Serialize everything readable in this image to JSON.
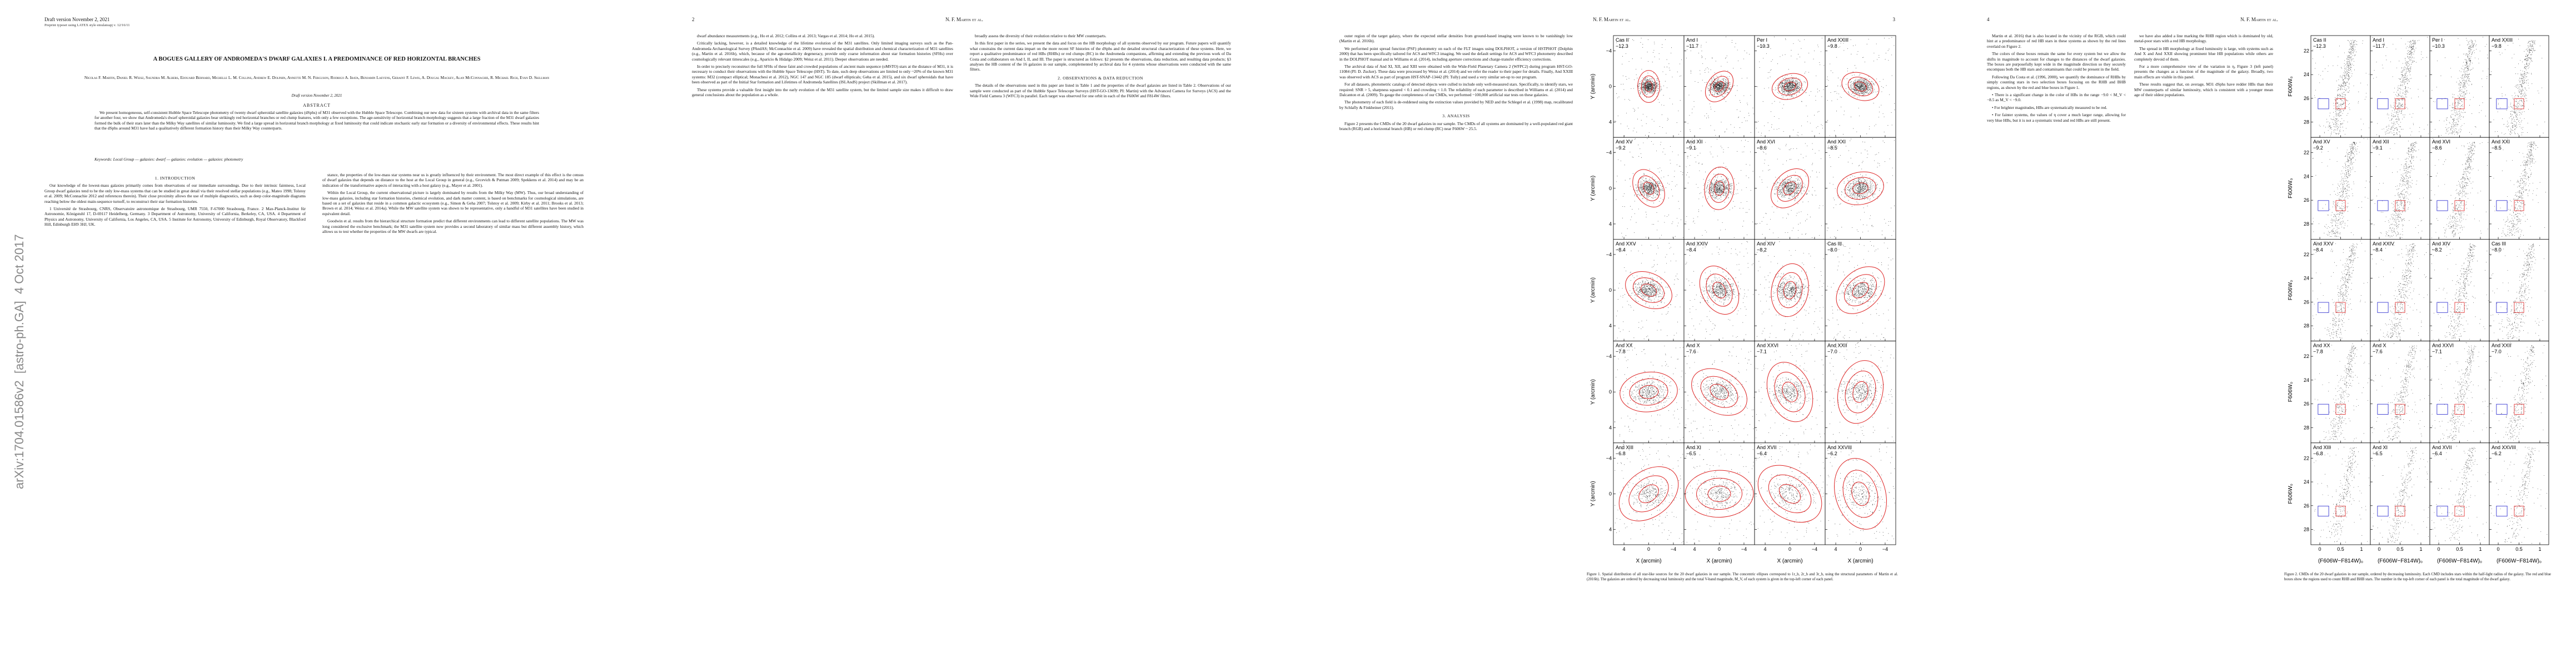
{
  "sidebar": "arXiv:1704.01586v2  [astro-ph.GA]  4 Oct 2017",
  "pages": [
    {
      "header": {
        "left": "Draft version November 2, 2021",
        "sub": "Preprint typeset using LATEX style emulateapj v. 12/16/11"
      },
      "title": "A BOGUES GALLERY OF ANDROMEDA'S DWARF GALAXIES I. A PREDOMINANCE OF RED HORIZONTAL BRANCHES",
      "authors": "Nicolas F. Martin, Daniel R. Weisz, Saundra M. Albers, Edouard Bernard, Michelle L. M. Collins, Andrew E. Dolphin, Annette M. N. Ferguson, Rodrigo A. Ibata, Benjamin Laevens, Geraint F. Lewis, A. Dougal Mackey, Alan McConnachie, R. Michael Rich, Evan D. Skillman",
      "draft_note": "Draft version November 2, 2021",
      "abstract_heading": "ABSTRACT",
      "abstract": "We present homogeneous, self-consistent Hubble Space Telescope photometry of twenty dwarf spheroidal satellite galaxies (dSphs) of M31 observed with the Hubble Space Telescope. Combining our new data for sixteen systems with archival data in the same filters for another four, we show that Andromeda's dwarf spheroidal galaxies bear strikingly red horizontal branches or red clump features, with only a few exceptions. The age-sensitivity of horizontal branch morphology suggests that a large fraction of the M31 dwarf galaxies formed the bulk of their stars later than the Milky Way satellites of similar luminosity. We find a large spread in horizontal branch morphology at fixed luminosity that could indicate stochastic early star formation or a diversity of environmental effects. These results hint that the dSphs around M31 have had a qualitatively different formation history than their Milky Way counterparts.",
      "keywords": "Keywords: Local Group — galaxies: dwarf — galaxies: evolution — galaxies: photometry",
      "columns": [
        [
          {
            "h": "1. INTRODUCTION"
          },
          {
            "p": "Our knowledge of the lowest-mass galaxies primarily comes from observations of our immediate surroundings. Due to their intrinsic faintness, Local Group dwarf galaxies tend to be the only low-mass systems that can be studied in great detail via their resolved stellar populations (e.g., Mateo 1998; Tolstoy et al. 2009; McConnachie 2012 and references therein). Their close proximity allows the use of multiple diagnostics, such as deep color-magnitude diagrams reaching below the oldest main-sequence turnoff, to reconstruct their star formation histories."
          },
          {
            "p": "1 Université de Strasbourg, CNRS, Observatoire astronomique de Strasbourg, UMR 7550, F-67000 Strasbourg, France. 2 Max-Planck-Institut für Astronomie, Königstuhl 17, D-69117 Heidelberg, Germany. 3 Department of Astronomy, University of California, Berkeley, CA, USA. 4 Department of Physics and Astronomy, University of California, Los Angeles, CA, USA. 5 Institute for Astronomy, University of Edinburgh, Royal Observatory, Blackford Hill, Edinburgh EH9 3HJ, UK."
          }
        ],
        [
          {
            "p": "stance, the properties of the low-mass star systems near us is greatly influenced by their environment. The most direct example of this effect is the census of dwarf galaxies that depends on distance to the host at the Local Group in general (e.g., Grcevich & Putman 2009; Spekkens et al. 2014) and may be an indication of the transformative aspects of interacting with a host galaxy (e.g., Mayer et al. 2001)."
          },
          {
            "p": "Within the Local Group, the current observational picture is largely dominated by results from the Milky Way (MW). Thus, our broad understanding of low-mass galaxies, including star formation histories, chemical evolution, and dark matter content, is based on benchmarks for cosmological simulations, are based on a set of galaxies that reside in a common galactic ecosystem (e.g., Simon & Geha 2007; Tolstoy et al. 2009; Kirby et al. 2011; Brooks et al. 2013; Brown et al. 2014; Weisz et al. 2014a). While the MW satellite system was shown to be representative, only a handful of M31 satellites have been studied in equivalent detail."
          },
          {
            "p": "Goodwin et al. results from the hierarchical structure formation predict that different environments can lead to different satellite populations. The MW was long considered the exclusive benchmark; the M31 satellite system now provides a second laboratory of similar mass but different assembly history, which allows us to test whether the properties of the MW dwarfs are typical."
          }
        ]
      ]
    },
    {
      "header": {
        "left": "2",
        "center": "N. F. Martin et al."
      },
      "columns": [
        [
          {
            "p": "dwarf abundance measurements (e.g., Ho et al. 2012; Collins et al. 2013; Vargas et al. 2014; Ho et al. 2015)."
          },
          {
            "p": "Critically lacking, however, is a detailed knowledge of the lifetime evolution of the M31 satellites. Only limited imaging surveys such as the Pan-Andromeda Archaeological Survey (PAndAS; McConnachie et al. 2009) have revealed the spatial distribution and chemical characterization of M31 satellites (e.g., Martin et al. 2016b), which, because of the age-metallicity degeneracy, provide only coarse information about star formation histories (SFHs) over cosmologically relevant timescales (e.g., Aparicio & Hidalgo 2009; Weisz et al. 2011). Deeper observations are needed."
          },
          {
            "p": "In order to precisely reconstruct the full SFHs of these faint and crowded populations of ancient main sequence (oMSTO) stars at the distance of M31, it is necessary to conduct their observations with the Hubble Space Telescope (HST). To date, such deep observations are limited to only ~20% of the known M31 systems: M32 (compact elliptical; Monachesi et al. 2012), NGC 147 and NGC 185 (dwarf ellipticals; Geha et al. 2015), and six dwarf spheroidals that have been observed as part of the Initial Star formation and Lifetimes of Andromeda Satellites (ISLAndS) project (Skillman et al. 2017)."
          },
          {
            "p": "These systems provide a valuable first insight into the early evolution of the M31 satellite system, but the limited sample size makes it difficult to draw general conclusions about the population as a whole."
          }
        ],
        [
          {
            "p": "broadly assess the diversity of their evolution relative to their MW counterparts."
          },
          {
            "p": "In this first paper in the series, we present the data and focus on the HB morphology of all systems observed by our program. Future papers will quantify what constrains the current data impart on the more recent SF histories of the dSphs and the detailed structural characterization of these systems. Here, we report a qualitative predominance of red HBs (RHBs) or red clumps (RC) in the Andromeda companions, affirming and extending the previous work of Da Costa and collaborators on And I, II, and III. The paper is structured as follows: §2 presents the observations, data reduction, and resulting data products; §3 analyses the HB content of the 16 galaxies in our sample, complemented by archival data for 4 systems whose observations were conducted with the same filters."
          },
          {
            "h": "2. OBSERVATIONS & DATA REDUCTION"
          },
          {
            "p": "The details of the observations used in this paper are listed in Table 1 and the properties of the dwarf galaxies are listed in Table 2. Observations of our sample were conducted as part of the Hubble Space Telescope Surveys (HST-GO-13699; PI: Martin) with the Advanced Camera for Surveys (ACS) and the Wide Field Camera 3 (WFC3) in parallel. Each target was observed for one orbit in each of the F606W and F814W filters."
          }
        ]
      ]
    },
    {
      "header": {
        "center": "N. F. Martin et al.",
        "right": "3"
      },
      "columns": [
        [
          {
            "p": "outer region of the target galaxy, where the expected stellar densities from ground-based imaging were known to be vanishingly low (Martin et al. 2016b)."
          },
          {
            "p": "We performed point spread function (PSF) photometry on each of the FLT images using DOLPHOT, a version of HSTPHOT (Dolphin 2000) that has been specifically tailored for ACS and WFC3 imaging. We used the default settings for ACS and WFC3 photometry described in the DOLPHOT manual and in Williams et al. (2014), including aperture corrections and charge-transfer efficiency corrections."
          },
          {
            "p": "The archival data of And XI, XII, and XIII were obtained with the Wide-Field Planetary Camera 2 (WFPC2) during program HST-GO-11084 (PI: D. Zucker). These data were processed by Weisz et al. (2014) and we refer the reader to their paper for details. Finally, And XXIII was observed with ACS as part of program HST-SNAP-13442 (PI: Tully) and used a very similar set-up to our program."
          },
          {
            "p": "For all datasets, photometric catalogs of detected objects were culled to include only well-measured stars. Specifically, to identify stars, we required: SNR > 5, sharpness squared < 0.1 and crowding < 1.0. The reliability of each parameter is described in Williams et al. (2014) and Dalcanton et al. (2009). To gauge the completeness of our CMDs, we performed ~100,000 artificial star tests on these galaxies."
          },
          {
            "p": "The photometry of each field is de-reddened using the extinction values provided by NED and the Schlegel et al. (1998) map, recalibrated by Schlafly & Finkbeiner (2011)."
          },
          {
            "h": "3. ANALYSIS"
          },
          {
            "p": "Figure 2 presents the CMDs of the 20 dwarf galaxies in our sample. The CMDs of all systems are dominated by a well-populated red giant branch (RGB) and a horizontal branch (HB) or red clump (RC) near F606W ~ 25.5."
          }
        ]
      ],
      "figure": {
        "x_label": "X (arcmin)",
        "y_label": "Y (arcmin)",
        "x_ticks": [
          "4",
          "0",
          "−4"
        ],
        "y_ticks": [
          "−4",
          "0",
          "4"
        ],
        "panels": [
          {
            "name": "Cas II",
            "mag": "−12.3"
          },
          {
            "name": "And I",
            "mag": "−11.7"
          },
          {
            "name": "Per I",
            "mag": "−10.3"
          },
          {
            "name": "And XXIII",
            "mag": "−9.8"
          },
          {
            "name": "And XV",
            "mag": "−9.2"
          },
          {
            "name": "And XII",
            "mag": "−9.1"
          },
          {
            "name": "And XVI",
            "mag": "−8.6"
          },
          {
            "name": "And XXI",
            "mag": "−8.5"
          },
          {
            "name": "And XXV",
            "mag": "−8.4"
          },
          {
            "name": "And XXIV",
            "mag": "−8.4"
          },
          {
            "name": "And XIV",
            "mag": "−8.2"
          },
          {
            "name": "Cas III",
            "mag": "−8.0"
          },
          {
            "name": "And XX",
            "mag": "−7.8"
          },
          {
            "name": "And X",
            "mag": "−7.6"
          },
          {
            "name": "And XXVI",
            "mag": "−7.1"
          },
          {
            "name": "And XXII",
            "mag": "−7.0"
          },
          {
            "name": "And XIII",
            "mag": "−6.8"
          },
          {
            "name": "And XI",
            "mag": "−6.5"
          },
          {
            "name": "And XVII",
            "mag": "−6.4"
          },
          {
            "name": "And XXVIII",
            "mag": "−6.2"
          }
        ],
        "caption": "Figure 1. Spatial distribution of all star-like sources for the 20 dwarf galaxies in our sample. The concentric ellipses correspond to 1r_h, 2r_h and 3r_h, using the structural parameters of Martin et al. (2016b). The galaxies are ordered by decreasing total luminosity and the total V-band magnitude, M_V, of each system is given in the top-left corner of each panel."
      }
    },
    {
      "header": {
        "left": "4",
        "center": "N. F. Martin et al."
      },
      "columns": [
        [
          {
            "p": "Martin et al. 2016) that is also located in the vicinity of the RGB, which could hint at a predominance of red HB stars in these systems as shown by the red lines overlaid on Figure 2."
          },
          {
            "p": "The colors of these boxes remain the same for every system but we allow the shifts in magnitude to account for changes to the distances of the dwarf galaxies. The boxes are purposefully kept wide in the magnitude direction so they securely encompass both the HB stars and contaminants that could be present in the field."
          },
          {
            "p": "Following Da Costa et al. (1996, 2000), we quantify the dominance of RHBs by simply counting stars in two selection boxes focusing on the RHB and BHB regions, as shown by the red and blue boxes in Figure 1."
          },
          {
            "p": "• There is a significant change in the color of HBs in the range −9.0 < M_V < −8.5 as M_V < −9.0."
          },
          {
            "p": "• For brighter magnitudes, HBs are systematically measured to be red."
          },
          {
            "p": "• For fainter systems, the values of η cover a much larger range, allowing for very blue HBs, but it is not a systematic trend and red HBs are still present."
          }
        ],
        [
          {
            "p": "we have also added a line marking the RHB region which is dominated by old, metal-poor stars with a red HB morphology."
          },
          {
            "p": "The spread in HB morphology at fixed luminosity is large, with systems such as And X and And XXII showing prominent blue HB populations while others are completely devoid of them."
          },
          {
            "p": "For a more comprehensive view of the variation in η, Figure 3 (left panel) presents the changes as a function of the magnitude of the galaxy. Broadly, two main effects are visible in this panel."
          },
          {
            "p": "These results suggest that, on average, M31 dSphs have redder HBs than their MW counterparts of similar luminosity, which is consistent with a younger mean age of their oldest populations."
          }
        ]
      ],
      "figure": {
        "x_label": "(F606W−F814W)₀",
        "y_label": "F606W₀",
        "x_ticks": [
          "0",
          "0.5",
          "1"
        ],
        "y_ticks": [
          "22",
          "24",
          "26",
          "28"
        ],
        "panels": [
          {
            "name": "Cas II",
            "mag": "−12.3"
          },
          {
            "name": "And I",
            "mag": "−11.7"
          },
          {
            "name": "Per I",
            "mag": "−10.3"
          },
          {
            "name": "And XXIII",
            "mag": "−9.8"
          },
          {
            "name": "And XV",
            "mag": "−9.2"
          },
          {
            "name": "And XII",
            "mag": "−9.1"
          },
          {
            "name": "And XVI",
            "mag": "−8.6"
          },
          {
            "name": "And XXI",
            "mag": "−8.5"
          },
          {
            "name": "And XXV",
            "mag": "−8.4"
          },
          {
            "name": "And XXIV",
            "mag": "−8.4"
          },
          {
            "name": "And XIV",
            "mag": "−8.2"
          },
          {
            "name": "Cas III",
            "mag": "−8.0"
          },
          {
            "name": "And XX",
            "mag": "−7.8"
          },
          {
            "name": "And X",
            "mag": "−7.6"
          },
          {
            "name": "And XXVI",
            "mag": "−7.1"
          },
          {
            "name": "And XXII",
            "mag": "−7.0"
          },
          {
            "name": "And XIII",
            "mag": "−6.8"
          },
          {
            "name": "And XI",
            "mag": "−6.5"
          },
          {
            "name": "And XVII",
            "mag": "−6.4"
          },
          {
            "name": "And XXVIII",
            "mag": "−6.2"
          }
        ],
        "caption": "Figure 2. CMDs of the 20 dwarf galaxies in our sample, ordered by decreasing luminosity. Each CMD includes stars within the half-light radius of the galaxy. The red and blue boxes show the regions used to count RHB and BHB stars. The number in the top-left corner of each panel is the total magnitude of the dwarf galaxy."
      }
    }
  ]
}
